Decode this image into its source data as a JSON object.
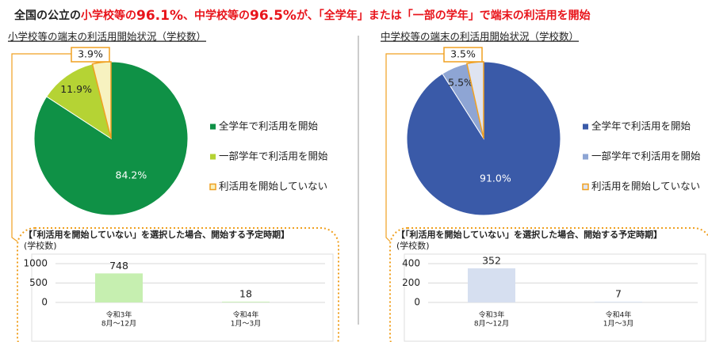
{
  "headline": [
    "全国の公立の",
    "小学校等の",
    "96.1%",
    "、中学校等の",
    "96.5%",
    "が、「全学年」または「一部の学年」で端末の利活用を開始"
  ],
  "chart_data": [
    {
      "type": "pie",
      "title": "小学校等の端末の利活用開始状況（学校数）",
      "categories": [
        "全学年で利活用を開始",
        "一部学年で利活用を開始",
        "利活用を開始していない"
      ],
      "values": [
        84.2,
        11.9,
        3.9
      ],
      "value_labels": [
        "84.2%",
        "11.9%",
        "3.9%"
      ],
      "colors": [
        "#0f9146",
        "#b5d334",
        "#f7f2c0"
      ]
    },
    {
      "type": "pie",
      "title": "中学校等の端末の利活用開始状況（学校数）",
      "categories": [
        "全学年で利活用を開始",
        "一部学年で利活用を開始",
        "利活用を開始していない"
      ],
      "values": [
        91.0,
        5.5,
        3.5
      ],
      "value_labels": [
        "91.0%",
        "5.5%",
        "3.5%"
      ],
      "colors": [
        "#3a5aa8",
        "#8ea5d4",
        "#dfe4f1"
      ]
    },
    {
      "type": "bar",
      "title": "【「利活用を開始していない」を選択した場合、開始する予定時期】",
      "ylabel": "(学校数)",
      "categories": [
        [
          "令和3年",
          "8月～12月"
        ],
        [
          "令和4年",
          "1月～3月"
        ]
      ],
      "values": [
        748,
        18
      ],
      "color": "#c6efb0",
      "ylim": [
        0,
        1000
      ],
      "yticks": [
        0,
        500,
        1000
      ],
      "grid": true
    },
    {
      "type": "bar",
      "title": "【「利活用を開始していない」を選択した場合、開始する予定時期】",
      "ylabel": "(学校数)",
      "categories": [
        [
          "令和3年",
          "8月～12月"
        ],
        [
          "令和4年",
          "1月～3月"
        ]
      ],
      "values": [
        352,
        7
      ],
      "color": "#d6dff0",
      "ylim": [
        0,
        400
      ],
      "yticks": [
        0,
        200,
        400
      ],
      "grid": true
    }
  ]
}
